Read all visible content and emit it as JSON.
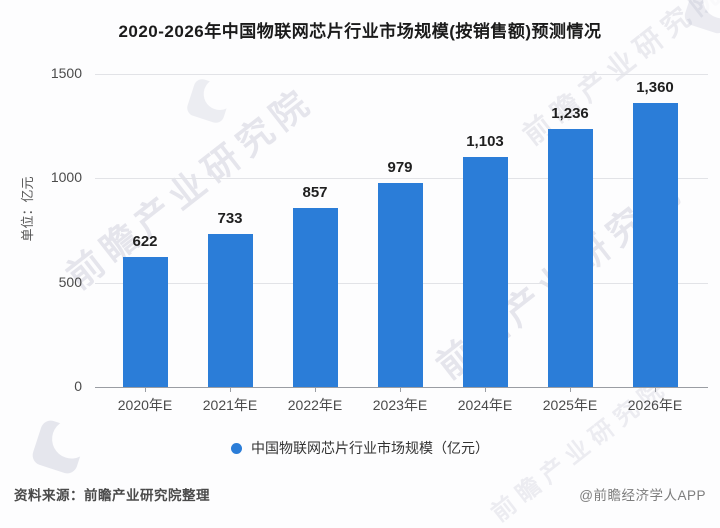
{
  "title": "2020-2026年中国物联网芯片行业市场规模(按销售额)预测情况",
  "chart_data": {
    "type": "bar",
    "categories": [
      "2020年E",
      "2021年E",
      "2022年E",
      "2023年E",
      "2024年E",
      "2025年E",
      "2026年E"
    ],
    "values": [
      622,
      733,
      857,
      979,
      1103,
      1236,
      1360
    ],
    "value_labels": [
      "622",
      "733",
      "857",
      "979",
      "1,103",
      "1,236",
      "1,360"
    ],
    "series_name": "中国物联网芯片行业市场规模（亿元）",
    "ylabel": "单位：亿元",
    "xlabel": "",
    "ylim": [
      0,
      1500
    ],
    "y_ticks": [
      0,
      500,
      1000,
      1500
    ],
    "bar_color": "#2b7dd8",
    "grid": true,
    "legend_position": "bottom"
  },
  "legend": {
    "label": "中国物联网芯片行业市场规模（亿元）",
    "marker_color": "#2b7dd8",
    "marker": "circle-icon"
  },
  "footer": {
    "source": "资料来源：前瞻产业研究院整理",
    "credit": "@前瞻经济学人APP"
  },
  "watermark": {
    "text": "前瞻产业研究院"
  }
}
